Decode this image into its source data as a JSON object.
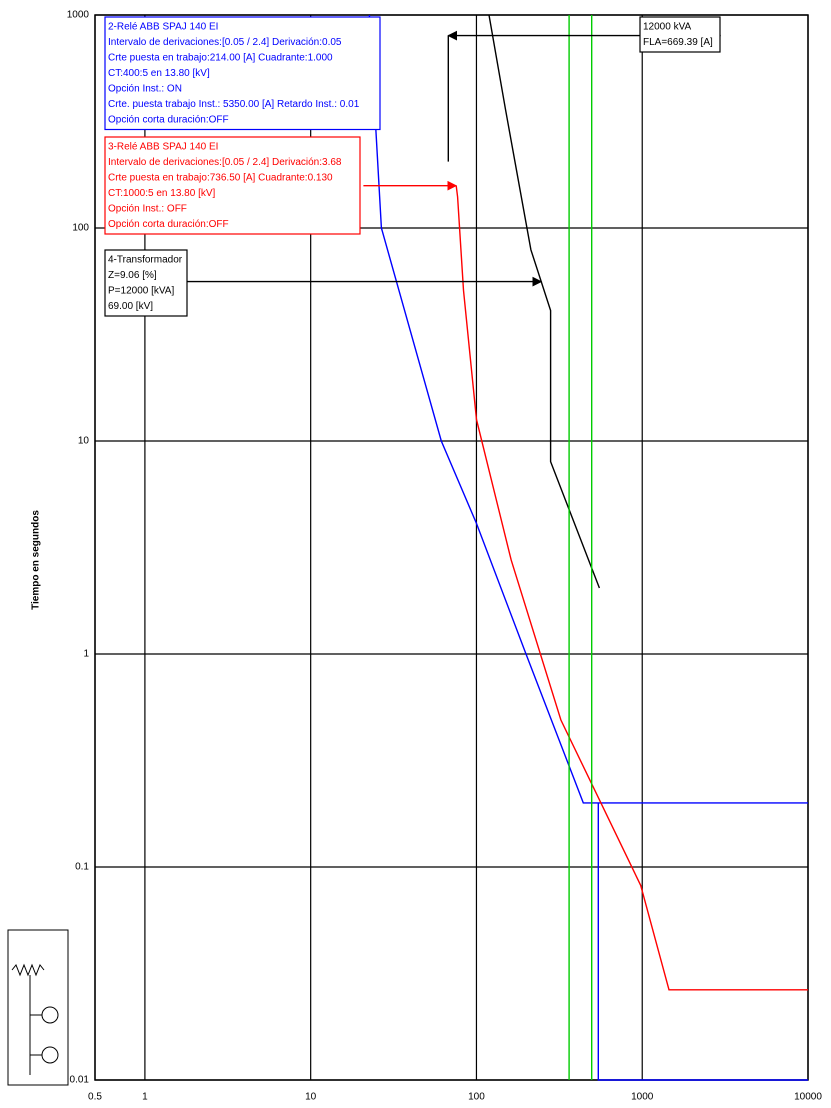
{
  "chart_data": {
    "type": "line",
    "xscale": "log",
    "yscale": "log",
    "grid": true,
    "ylabel": "Tiempo en segundos",
    "xlim": [
      0.5,
      10000
    ],
    "ylim": [
      0.01,
      1000
    ],
    "xticks": [
      0.5,
      1,
      10,
      100,
      1000,
      10000
    ],
    "yticks": [
      0.01,
      0.1,
      1,
      10,
      100,
      1000
    ],
    "series": [
      {
        "color": "#0000ff",
        "x": [
          22.6,
          26.7,
          61.4,
          100,
          199,
          441,
          10000,
          null,
          543,
          543,
          10000
        ],
        "values": [
          1000,
          100,
          10,
          4.1,
          1,
          0.2,
          0.2,
          null,
          0.2,
          0.01,
          0.01
        ]
      },
      {
        "color": "#ff0000",
        "x": [
          75.5,
          77,
          83.5,
          100,
          162,
          323,
          979,
          1450,
          10000
        ],
        "values": [
          158,
          140,
          51,
          12.6,
          2.76,
          0.49,
          0.082,
          0.0265,
          0.0265
        ]
      },
      {
        "color": "#000000",
        "x": [
          119,
          150,
          213,
          280,
          280,
          552
        ],
        "values": [
          1000,
          358,
          79,
          41,
          8,
          2.04
        ]
      },
      {
        "color": "#000000",
        "x": [
          67.6,
          67.6
        ],
        "values": [
          800,
          205
        ]
      },
      {
        "color": "#00cc00",
        "x": [
          362,
          362
        ],
        "values": [
          1000,
          0.01
        ]
      },
      {
        "color": "#00cc00",
        "x": [
          496,
          496
        ],
        "values": [
          1000,
          0.01
        ]
      },
      {
        "color": "#ff0000",
        "arrow": true,
        "x": [
          20.8,
          75.5
        ],
        "values": [
          158,
          158
        ]
      },
      {
        "color": "#000000",
        "arrow": true,
        "x": [
          2975,
          67.6
        ],
        "values": [
          800,
          800
        ]
      },
      {
        "color": "#000000",
        "arrow": true,
        "x": [
          1.79,
          246
        ],
        "values": [
          56,
          56
        ]
      }
    ],
    "annotations": [
      {
        "color": "#0000ff",
        "lines": [
          "2-Relé  ABB SPAJ 140 EI",
          "Intervalo de derivaciones:[0.05 / 2.4] Derivación:0.05",
          "Crte puesta en trabajo:214.00 [A] Cuadrante:1.000",
          "CT:400:5 en 13.80 [kV]",
          "Opción Inst.: ON",
          "Crte. puesta trabajo Inst.: 5350.00 [A] Retardo Inst.: 0.01",
          "Opción corta duración:OFF"
        ]
      },
      {
        "color": "#ff0000",
        "lines": [
          "3-Relé  ABB SPAJ 140 EI",
          "Intervalo de derivaciones:[0.05 / 2.4] Derivación:3.68",
          "Crte puesta en trabajo:736.50 [A] Cuadrante:0.130",
          "CT:1000:5 en 13.80 [kV]",
          "Opción Inst.: OFF",
          "Opción corta duración:OFF"
        ]
      },
      {
        "color": "#000000",
        "lines": [
          "4-Transformador",
          "Z=9.06 [%]",
          "P=12000 [kVA]",
          "69.00 [kV]"
        ]
      },
      {
        "color": "#000000",
        "lines": [
          "12000 kVA",
          "FLA=669.39 [A]"
        ]
      }
    ]
  }
}
